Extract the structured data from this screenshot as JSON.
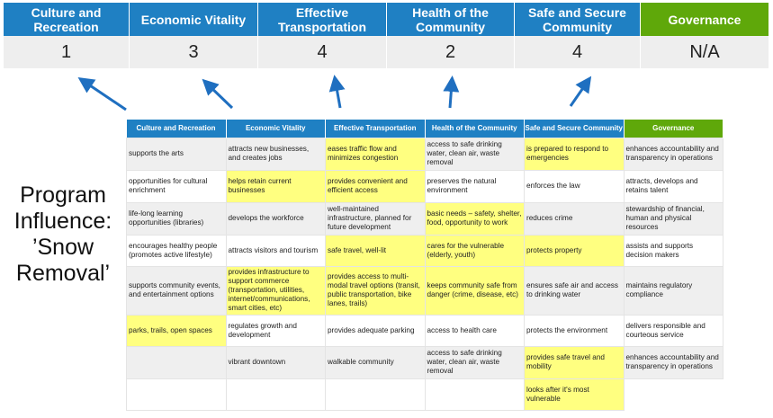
{
  "top": {
    "columns": [
      {
        "label": "Culture and Recreation",
        "score": "1"
      },
      {
        "label": "Economic Vitality",
        "score": "3"
      },
      {
        "label": "Effective Transportation",
        "score": "4"
      },
      {
        "label": "Health of the Community",
        "score": "2"
      },
      {
        "label": "Safe and Secure Community",
        "score": "4"
      },
      {
        "label": "Governance",
        "score": "N/A"
      }
    ]
  },
  "side_label": "Program Influence: ’Snow Removal’",
  "colors": {
    "header_blue": "#1f80c3",
    "governance_green": "#5fa80a",
    "highlight_yellow": "#ffff80",
    "arrow_blue": "#1f6fc0"
  },
  "table": {
    "headers": [
      "Culture and Recreation",
      "Economic Vitality",
      "Effective Transportation",
      "Health of the Community",
      "Safe and Secure Community",
      "Governance"
    ],
    "rows": [
      [
        [
          "supports the arts",
          0
        ],
        [
          "attracts new businesses, and creates jobs",
          0
        ],
        [
          "eases traffic flow and minimizes congestion",
          1
        ],
        [
          "access to safe drinking water, clean air, waste removal",
          0
        ],
        [
          "is prepared to respond to emergencies",
          1
        ],
        [
          "enhances accountability and transparency in operations",
          0
        ]
      ],
      [
        [
          "opportunities for cultural enrichment",
          0
        ],
        [
          "helps retain current businesses",
          1
        ],
        [
          "provides convenient and efficient access",
          1
        ],
        [
          "preserves the natural environment",
          0
        ],
        [
          "enforces the law",
          0
        ],
        [
          "attracts, develops and retains talent",
          0
        ]
      ],
      [
        [
          "life-long learning opportunities (libraries)",
          0
        ],
        [
          "develops the workforce",
          0
        ],
        [
          "well-maintained infrastructure, planned for future development",
          0
        ],
        [
          "basic needs – safety, shelter, food, opportunity to work",
          1
        ],
        [
          "reduces crime",
          0
        ],
        [
          "stewardship of financial, human and physical resources",
          0
        ]
      ],
      [
        [
          "encourages healthy people (promotes active lifestyle)",
          0
        ],
        [
          "attracts visitors and tourism",
          0
        ],
        [
          "safe travel, well-lit",
          1
        ],
        [
          "cares for the vulnerable (elderly, youth)",
          1
        ],
        [
          "protects property",
          1
        ],
        [
          "assists and supports decision makers",
          0
        ]
      ],
      [
        [
          "supports community events, and entertainment options",
          0
        ],
        [
          "provides infrastructure to support commerce (transportation, utilities, internet/communications, smart cities, etc)",
          1
        ],
        [
          "provides access to multi-modal travel options (transit, public transportation, bike lanes, trails)",
          1
        ],
        [
          "keeps community safe from danger (crime, disease, etc)",
          1
        ],
        [
          "ensures safe air and access to drinking water",
          0
        ],
        [
          "maintains regulatory compliance",
          0
        ]
      ],
      [
        [
          "parks, trails, open spaces",
          1
        ],
        [
          "regulates growth and development",
          0
        ],
        [
          "provides adequate parking",
          0
        ],
        [
          "access to health care",
          0
        ],
        [
          "protects the environment",
          0
        ],
        [
          "delivers responsible and courteous service",
          0
        ]
      ],
      [
        [
          "",
          0
        ],
        [
          "vibrant downtown",
          0
        ],
        [
          "walkable community",
          0
        ],
        [
          "access to safe drinking water, clean air, waste removal",
          0
        ],
        [
          "provides safe travel and mobility",
          1
        ],
        [
          "enhances accountability and transparency in operations",
          0
        ]
      ],
      [
        [
          "",
          0
        ],
        [
          "",
          0
        ],
        [
          "",
          0
        ],
        [
          "",
          0
        ],
        [
          "looks after it's most vulnerable",
          1
        ],
        [
          "",
          0
        ]
      ]
    ]
  }
}
